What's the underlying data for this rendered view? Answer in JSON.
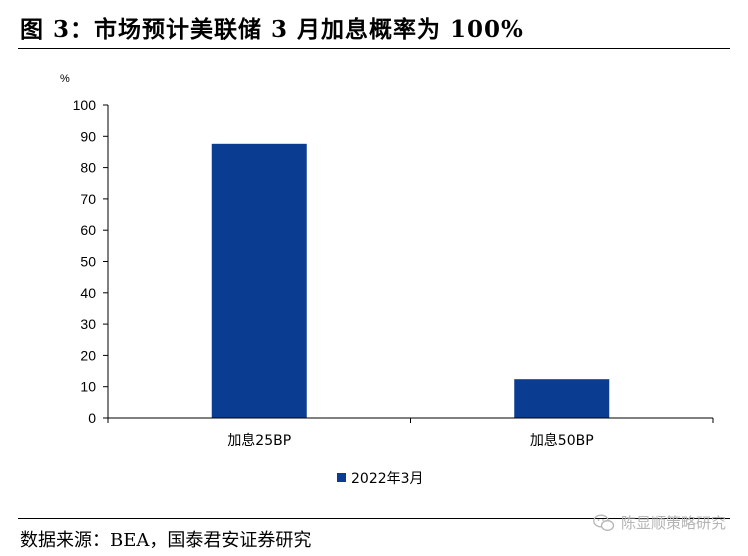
{
  "figure": {
    "title": "图 3：市场预计美联储 3 月加息概率为 100%",
    "source": "数据来源：BEA，国泰君安证券研究",
    "watermark": "陈显顺策略研究"
  },
  "colors": {
    "bar": "#0a3d91",
    "axis": "#000000",
    "rule": "#000000"
  },
  "chart_data": {
    "type": "bar",
    "title": "",
    "xlabel": "",
    "ylabel": "%",
    "categories": [
      "加息25BP",
      "加息50BP"
    ],
    "series": [
      {
        "name": "2022年3月",
        "values": [
          87.6,
          12.4
        ]
      }
    ],
    "ylim": [
      0,
      100
    ],
    "yticks": [
      0,
      10,
      20,
      30,
      40,
      50,
      60,
      70,
      80,
      90,
      100
    ],
    "grid": false,
    "legend": "bottom-center"
  }
}
